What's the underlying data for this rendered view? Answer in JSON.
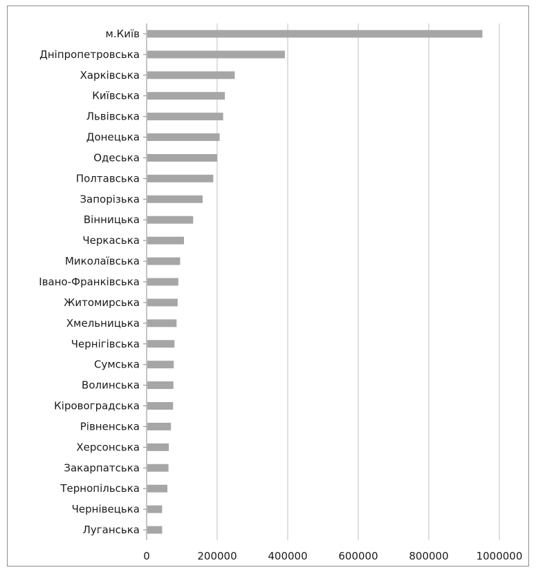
{
  "chart_data": {
    "type": "bar",
    "orientation": "horizontal",
    "categories": [
      "м.Київ",
      "Дніпропетровська",
      "Харківська",
      "Київська",
      "Львівська",
      "Донецька",
      "Одеська",
      "Полтавська",
      "Запорізька",
      "Вінницька",
      "Черкаська",
      "Миколаївська",
      "Івано-Франківська",
      "Житомирська",
      "Хмельницька",
      "Чернігівська",
      "Сумська",
      "Волинська",
      "Кіровоградська",
      "Рівненська",
      "Херсонська",
      "Закарпатська",
      "Тернопільська",
      "Чернівецька",
      "Луганська"
    ],
    "values": [
      950000,
      390000,
      248000,
      220000,
      215000,
      205000,
      198000,
      187000,
      157000,
      130000,
      104000,
      93000,
      88000,
      86000,
      83000,
      77000,
      75000,
      74000,
      73000,
      67000,
      61000,
      60000,
      57000,
      42000,
      42000
    ],
    "xlim": [
      0,
      1000000
    ],
    "x_ticks": [
      "0",
      "200000",
      "400000",
      "600000",
      "800000",
      "1000000"
    ],
    "grid": "vertical",
    "legend": "none",
    "colors": {
      "bar": "#a6a6a6",
      "grid": "#bfbfbf",
      "axis": "#8a8a8a",
      "frame": "#8a8a8a"
    },
    "title": "",
    "xlabel": "",
    "ylabel": ""
  }
}
